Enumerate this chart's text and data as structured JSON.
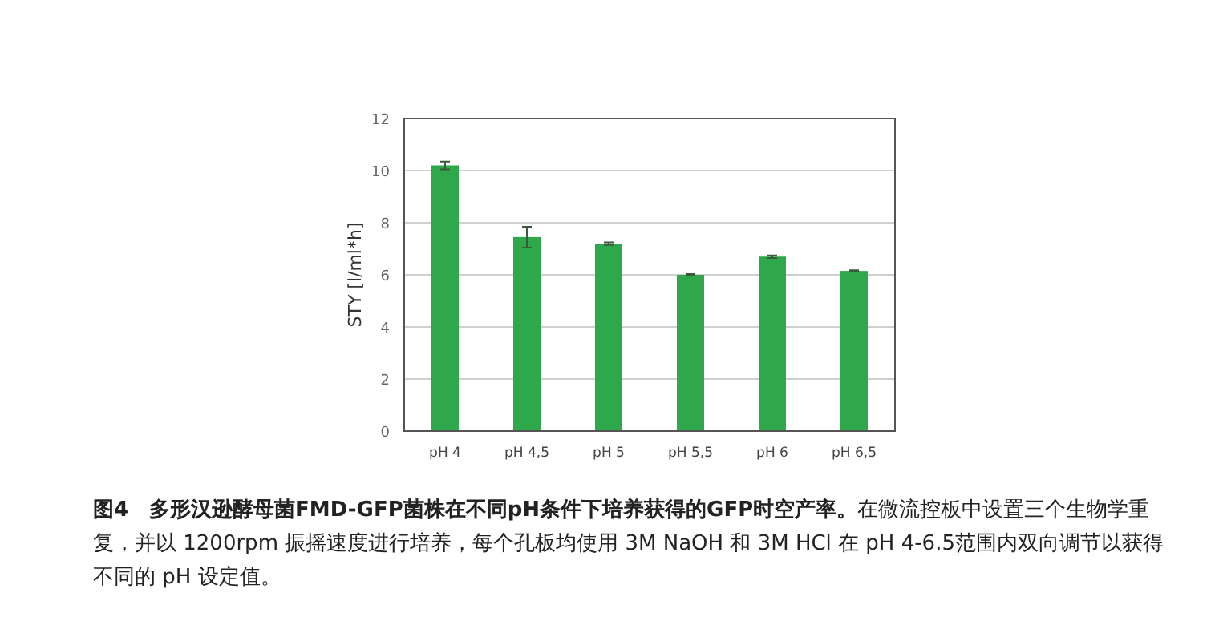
{
  "chart_data": {
    "type": "bar",
    "title": "图4　多形汉逊酵母菌FMD-GFP菌株在不同pH条件下培养获得的GFP时空产率。",
    "annotations": [
      "在微流控板中设置三个生物学重复，并以 1200rpm 振摇速度进行培养，每个孔板均使用 3M NaOH 和 3M HCl 在 pH 4-6.5范围内双向调节以获得不同的 pH 设定值。"
    ],
    "ylabel": "STY   [l/ml*h]",
    "categories": [
      "pH 4",
      "pH 4,5",
      "pH 5",
      "pH 5,5",
      "pH 6",
      "pH 6,5"
    ],
    "values": [
      10.2,
      7.45,
      7.2,
      6.0,
      6.7,
      6.15
    ],
    "errors": [
      0.15,
      0.4,
      0.05,
      0.03,
      0.05,
      0.03
    ],
    "color": "#2ea84a",
    "ylim": [
      0,
      12
    ],
    "yticks": [
      0,
      2,
      4,
      6,
      8,
      10,
      12
    ],
    "grid": "y"
  }
}
